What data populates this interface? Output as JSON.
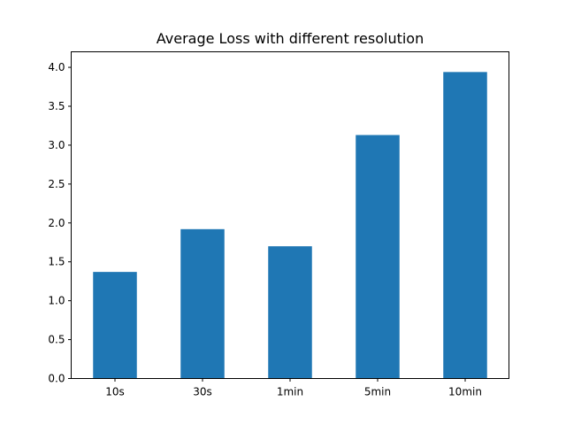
{
  "chart_data": {
    "type": "bar",
    "title": "Average Loss with different resolution",
    "xlabel": "",
    "ylabel": "",
    "categories": [
      "10s",
      "30s",
      "1min",
      "5min",
      "10min"
    ],
    "values": [
      1.37,
      1.92,
      1.7,
      3.13,
      3.94
    ],
    "ylim": [
      0,
      4.2
    ],
    "yticks": [
      0.0,
      0.5,
      1.0,
      1.5,
      2.0,
      2.5,
      3.0,
      3.5,
      4.0
    ],
    "ytick_labels": [
      "0.0",
      "0.5",
      "1.0",
      "1.5",
      "2.0",
      "2.5",
      "3.0",
      "3.5",
      "4.0"
    ],
    "bar_color": "#1f77b4",
    "grid": false,
    "legend": "none"
  }
}
